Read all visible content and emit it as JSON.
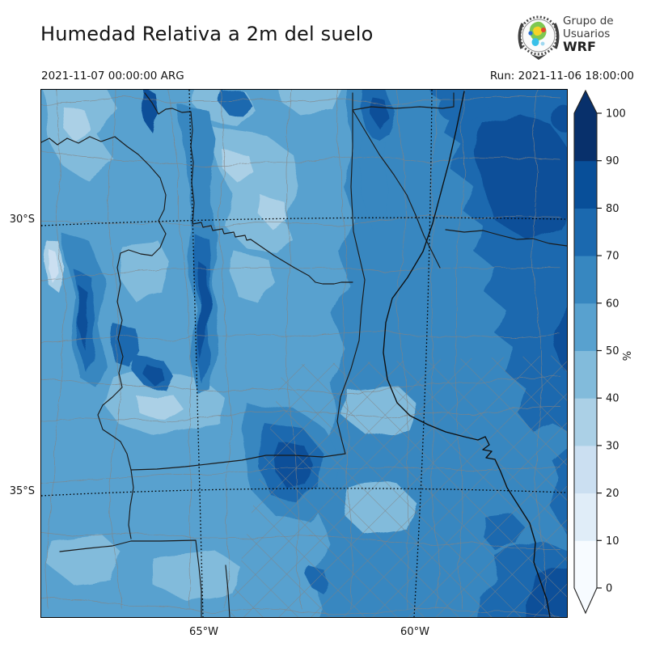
{
  "header": {
    "title": "Humedad Relativa a 2m del suelo",
    "valid_time": "2021-11-07 00:00:00 ARG",
    "run_label": "Run: 2021-11-06 18:00:00",
    "logo": {
      "line1": "Grupo de",
      "line2": "Usuarios",
      "line3": "WRF"
    }
  },
  "map": {
    "lat_ticks": [
      "30°S",
      "35°S"
    ],
    "lon_ticks": [
      "65°W",
      "60°W"
    ]
  },
  "colorbar": {
    "unit": "%",
    "levels": [
      0,
      10,
      20,
      30,
      40,
      50,
      60,
      70,
      80,
      90,
      100
    ],
    "colors": [
      "#f7fbff",
      "#e0edf8",
      "#cbdff1",
      "#abd0e6",
      "#82bbdb",
      "#58a1cf",
      "#3787c0",
      "#1b69af",
      "#084f99",
      "#08306b"
    ],
    "extend": "both"
  },
  "field": {
    "variable": "Humedad Relativa a 2m",
    "unit": "%",
    "summary": "Filled contours 0-100% in 10% steps; driest 30-50% bands in the central-west, 50-70% over most of the domain, 70-100% in the northeast and along the Parana river and southeast coast"
  }
}
